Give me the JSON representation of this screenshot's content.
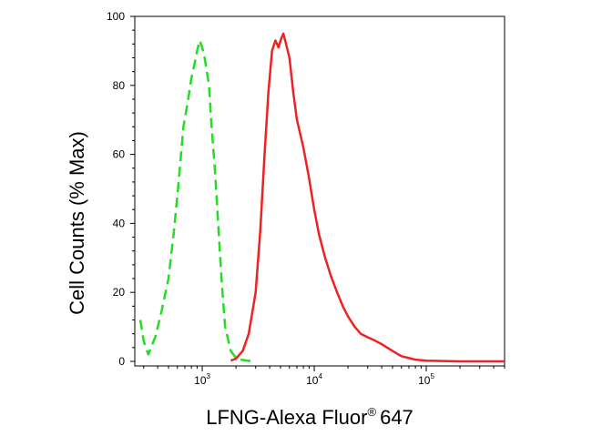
{
  "chart_data": {
    "type": "line",
    "title": "",
    "xlabel": "LFNG-Alexa Fluor",
    "xlabel_sup": "®",
    "xlabel_suffix": "647",
    "ylabel": "Cell Counts (% Max)",
    "x_scale": "log",
    "xlim": [
      250,
      500000
    ],
    "ylim": [
      0,
      100
    ],
    "y_ticks": [
      {
        "value": 0,
        "label": "0"
      },
      {
        "value": 20,
        "label": "20"
      },
      {
        "value": 40,
        "label": "40"
      },
      {
        "value": 60,
        "label": "60"
      },
      {
        "value": 80,
        "label": "80"
      },
      {
        "value": 100,
        "label": "100"
      }
    ],
    "x_ticks": [
      {
        "value": 1000,
        "base": "10",
        "exp": "3"
      },
      {
        "value": 10000,
        "base": "10",
        "exp": "4"
      },
      {
        "value": 100000,
        "base": "10",
        "exp": "5"
      }
    ],
    "grid": false,
    "series": [
      {
        "color": "#22dd22",
        "dash": "dashed",
        "x": [
          280,
          300,
          330,
          380,
          430,
          500,
          560,
          620,
          680,
          740,
          800,
          850,
          900,
          950,
          1000,
          1050,
          1100,
          1150,
          1200,
          1300,
          1400,
          1500,
          1600,
          1800,
          2000,
          2200,
          2500,
          3000
        ],
        "y": [
          12,
          6,
          2,
          7,
          14,
          24,
          38,
          53,
          68,
          75,
          82,
          86,
          90,
          93,
          91,
          88,
          84,
          80,
          70,
          55,
          38,
          22,
          10,
          3,
          1,
          0.5,
          0.2,
          0
        ]
      },
      {
        "color": "#ee2222",
        "dash": "solid",
        "x": [
          1800,
          2000,
          2300,
          2600,
          3000,
          3300,
          3600,
          3900,
          4200,
          4500,
          4800,
          5000,
          5300,
          5600,
          6000,
          6500,
          7000,
          8000,
          9000,
          10000,
          11000,
          12500,
          14000,
          16000,
          18000,
          20000,
          23000,
          26000,
          30000,
          35000,
          40000,
          50000,
          60000,
          80000,
          100000,
          200000,
          500000
        ],
        "y": [
          0.2,
          0.8,
          3,
          8,
          20,
          38,
          60,
          78,
          90,
          93,
          91,
          93,
          95,
          92,
          88,
          78,
          70,
          62,
          53,
          44,
          37,
          30,
          25,
          20,
          16,
          13,
          10,
          8,
          7,
          6,
          5,
          3,
          1.5,
          0.5,
          0.2,
          0,
          0
        ]
      }
    ]
  }
}
